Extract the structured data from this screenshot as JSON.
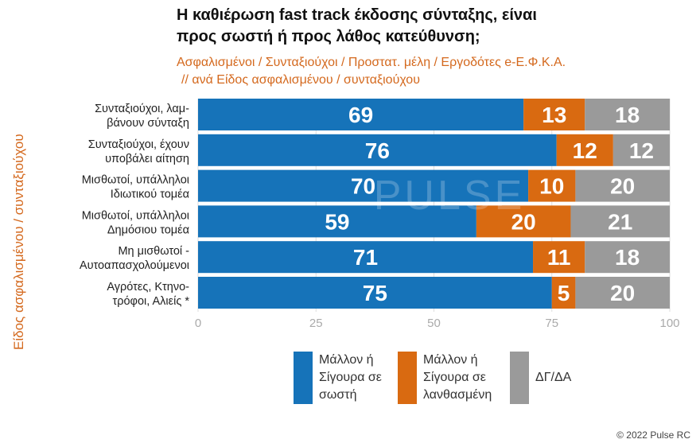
{
  "title_line1": "Η καθιέρωση fast track έκδοσης σύνταξης, είναι",
  "title_line2": "προς σωστή ή προς λάθος κατεύθυνση;",
  "subtitle_line1": "Ασφαλισμένοι / Συνταξιούχοι / Προστατ. μέλη / Εργοδότες e-Ε.Φ.Κ.Α.",
  "subtitle_line2": "// ανά Είδος ασφαλισμένου / συνταξιούχου",
  "side_label": "Είδος ασφαλισμένου / συνταξιούχου",
  "copyright": "© 2022 Pulse RC",
  "watermark": "PULSE",
  "colors": {
    "positive": "#1673b9",
    "negative": "#d96a11",
    "dk": "#9a9a9a"
  },
  "legend": [
    {
      "label": "Μάλλον ή Σίγουρα σε σωστή",
      "color": "#1673b9"
    },
    {
      "label": "Μάλλον ή Σίγουρα σε λανθασμένη",
      "color": "#d96a11"
    },
    {
      "label": "ΔΓ/ΔΑ",
      "color": "#9a9a9a"
    }
  ],
  "chart_data": {
    "type": "bar",
    "orientation": "horizontal",
    "stacked": true,
    "categories": [
      [
        "Συνταξιούχοι, λαμ-",
        "βάνουν σύνταξη"
      ],
      [
        "Συνταξιούχοι, έχουν",
        "υποβάλει αίτηση"
      ],
      [
        "Μισθωτοί, υπάλληλοι",
        "Ιδιωτικού τομέα"
      ],
      [
        "Μισθωτοί, υπάλληλοι",
        "Δημόσιου τομέα"
      ],
      [
        "Μη μισθωτοί -",
        "Αυτοαπασχολούμενοι"
      ],
      [
        "Αγρότες, Κτηνο-",
        "τρόφοι, Αλιείς *"
      ]
    ],
    "series": [
      {
        "name": "Μάλλον ή Σίγουρα σε σωστή",
        "values": [
          69,
          76,
          70,
          59,
          71,
          75
        ]
      },
      {
        "name": "Μάλλον ή Σίγουρα σε λανθασμένη",
        "values": [
          13,
          12,
          10,
          20,
          11,
          5
        ]
      },
      {
        "name": "ΔΓ/ΔΑ",
        "values": [
          18,
          12,
          20,
          21,
          18,
          20
        ]
      }
    ],
    "xlim": [
      0,
      100
    ],
    "xticks": [
      0,
      25,
      50,
      75,
      100
    ],
    "grid": true,
    "legend_position": "bottom"
  }
}
